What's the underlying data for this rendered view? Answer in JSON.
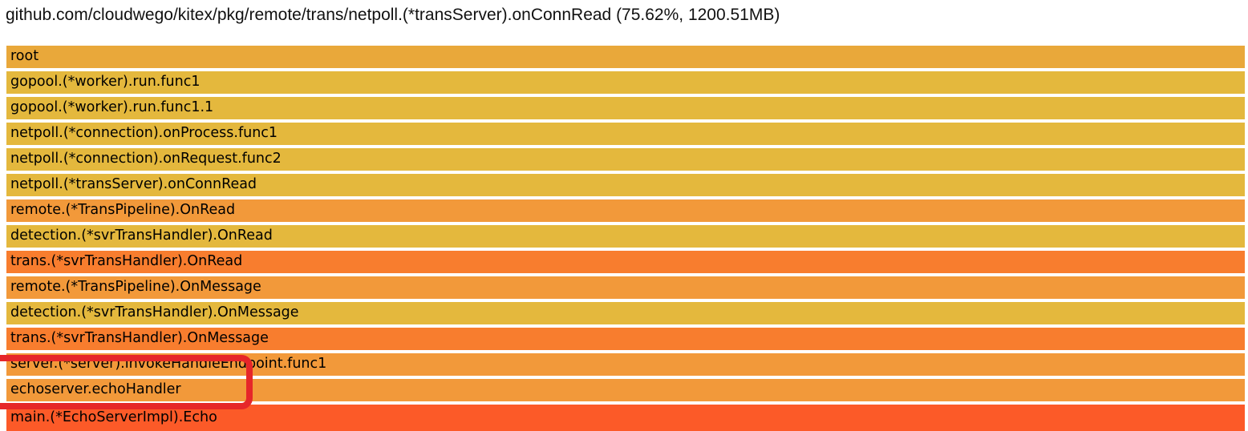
{
  "header": {
    "title": "github.com/cloudwego/kitex/pkg/remote/trans/netpoll.(*transServer).onConnRead (75.62%, 1200.51MB)"
  },
  "chart_data": {
    "type": "flamegraph",
    "title": "github.com/cloudwego/kitex/pkg/remote/trans/netpoll.(*transServer).onConnRead (75.62%, 1200.51MB)",
    "unit": "MB",
    "selected": {
      "frame": "netpoll.(*transServer).onConnRead",
      "percent": "75.62%",
      "value": "1200.51MB"
    },
    "layout": "single chain, every frame spans full width (100%)",
    "frames": [
      {
        "label": "root",
        "color": "#e9a83a",
        "width_pct": 100
      },
      {
        "label": "gopool.(*worker).run.func1",
        "color": "#e4b83d",
        "width_pct": 100
      },
      {
        "label": "gopool.(*worker).run.func1.1",
        "color": "#e4b83d",
        "width_pct": 100
      },
      {
        "label": "netpoll.(*connection).onProcess.func1",
        "color": "#e4b83d",
        "width_pct": 100
      },
      {
        "label": "netpoll.(*connection).onRequest.func2",
        "color": "#e4b83d",
        "width_pct": 100
      },
      {
        "label": "netpoll.(*transServer).onConnRead",
        "color": "#e4b83d",
        "width_pct": 100
      },
      {
        "label": "remote.(*TransPipeline).OnRead",
        "color": "#f2993a",
        "width_pct": 100
      },
      {
        "label": "detection.(*svrTransHandler).OnRead",
        "color": "#e4b83d",
        "width_pct": 100
      },
      {
        "label": "trans.(*svrTransHandler).OnRead",
        "color": "#f87d2e",
        "width_pct": 100
      },
      {
        "label": "remote.(*TransPipeline).OnMessage",
        "color": "#f2993a",
        "width_pct": 100
      },
      {
        "label": "detection.(*svrTransHandler).OnMessage",
        "color": "#e4b83d",
        "width_pct": 100
      },
      {
        "label": "trans.(*svrTransHandler).OnMessage",
        "color": "#f87d2e",
        "width_pct": 100
      },
      {
        "label": "server.(*server).invokeHandleEndpoint.func1",
        "color": "#f2993a",
        "width_pct": 100
      },
      {
        "label": "echoserver.echoHandler",
        "color": "#f2993a",
        "width_pct": 100
      },
      {
        "label": "main.(*EchoServerImpl).Echo",
        "color": "#fc5a28",
        "width_pct": 100
      }
    ]
  },
  "annotation": {
    "shape": "red rounded rectangle, clipped at left edge of screen",
    "color": "#e62629",
    "highlighted_frames": [
      "server.(*server).invokeHandleEndpoint.func1",
      "echoserver.echoHandler"
    ]
  }
}
